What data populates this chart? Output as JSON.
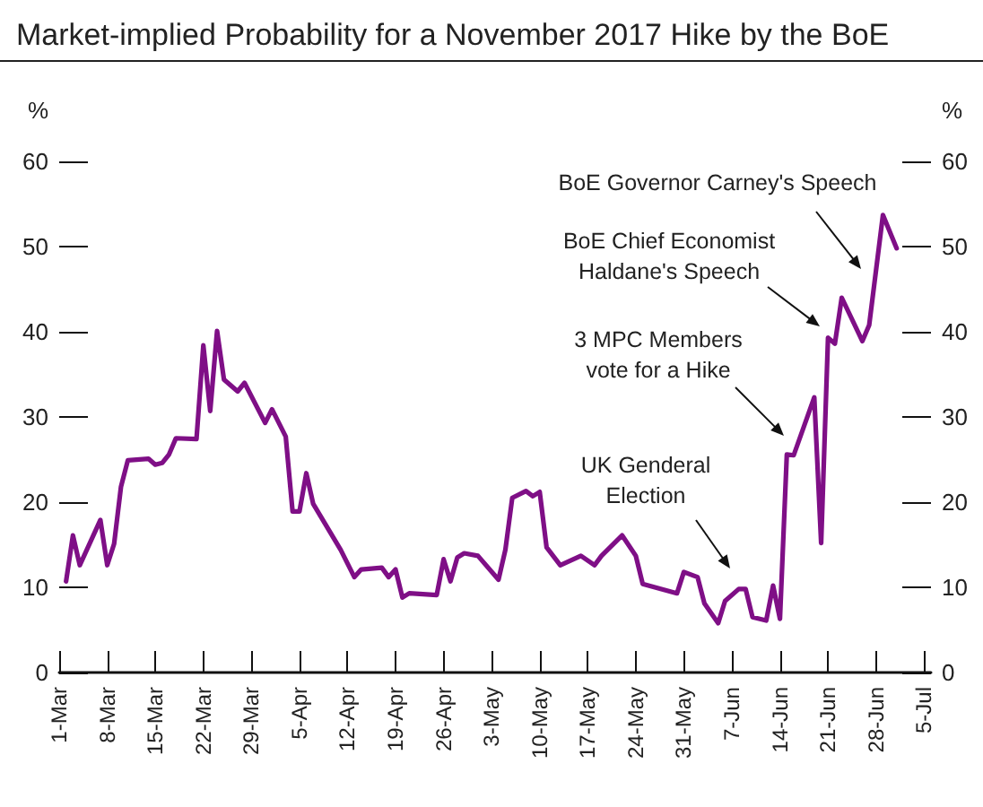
{
  "chart_data": {
    "type": "line",
    "title": "Market-implied Probability for a November 2017 Hike by the BoE",
    "ylabel": "%",
    "y2label": "%",
    "x": [
      "--03-02",
      "--03-03",
      "--03-04",
      "--03-07",
      "--03-08",
      "--03-09",
      "--03-10",
      "--03-11",
      "--03-14",
      "--03-15",
      "--03-16",
      "--03-17",
      "--03-18",
      "--03-21",
      "--03-22",
      "--03-23",
      "--03-24",
      "--03-25",
      "--03-27",
      "--03-28",
      "--03-31",
      "--04-01",
      "--04-03",
      "--04-04",
      "--04-05",
      "--04-06",
      "--04-07",
      "--04-11",
      "--04-13",
      "--04-14",
      "--04-17",
      "--04-18",
      "--04-19",
      "--04-20",
      "--04-21",
      "--04-25",
      "--04-26",
      "--04-27",
      "--04-28",
      "--04-29",
      "--05-01",
      "--05-04",
      "--05-05",
      "--05-06",
      "--05-08",
      "--05-09",
      "--05-10",
      "--05-11",
      "--05-13",
      "--05-16",
      "--05-18",
      "--05-19",
      "--05-22",
      "--05-24",
      "--05-25",
      "--05-30",
      "--05-31",
      "--06-02",
      "--06-03",
      "--06-05",
      "--06-06",
      "--06-08",
      "--06-09",
      "--06-10",
      "--06-12",
      "--06-13",
      "--06-14",
      "--06-15",
      "--06-16",
      "--06-19",
      "--06-20",
      "--06-21",
      "--06-22",
      "--06-23",
      "--06-26",
      "--06-27",
      "--06-29",
      "--07-01"
    ],
    "series": [
      {
        "color": "#7f0f86",
        "values": [
          10.7,
          16.1,
          12.6,
          17.9,
          12.6,
          15.1,
          21.8,
          24.9,
          25.1,
          24.4,
          24.6,
          25.6,
          27.5,
          27.4,
          38.4,
          30.7,
          40.1,
          34.4,
          33.0,
          34.0,
          29.3,
          30.9,
          27.7,
          18.9,
          18.9,
          23.4,
          19.8,
          14.4,
          11.2,
          12.1,
          12.3,
          11.2,
          12.1,
          8.8,
          9.3,
          9.1,
          13.3,
          10.7,
          13.5,
          14.0,
          13.7,
          10.9,
          14.4,
          20.5,
          21.3,
          20.7,
          21.2,
          14.7,
          12.6,
          13.7,
          12.6,
          13.7,
          16.1,
          13.7,
          10.4,
          9.3,
          11.8,
          11.2,
          8.1,
          5.8,
          8.4,
          9.8,
          9.8,
          6.5,
          6.1,
          10.2,
          6.3,
          25.6,
          25.5,
          32.3,
          15.2,
          39.3,
          38.6,
          44.0,
          38.9,
          40.8,
          53.7,
          49.8
        ]
      }
    ],
    "xlim": [
      "--03-01",
      "--07-06"
    ],
    "xticks": [
      {
        "value": "--03-01",
        "label": "1-Mar"
      },
      {
        "value": "--03-08",
        "label": "8-Mar"
      },
      {
        "value": "--03-15",
        "label": "15-Mar"
      },
      {
        "value": "--03-22",
        "label": "22-Mar"
      },
      {
        "value": "--03-29",
        "label": "29-Mar"
      },
      {
        "value": "--04-05",
        "label": "5-Apr"
      },
      {
        "value": "--04-12",
        "label": "12-Apr"
      },
      {
        "value": "--04-19",
        "label": "19-Apr"
      },
      {
        "value": "--04-26",
        "label": "26-Apr"
      },
      {
        "value": "--05-03",
        "label": "3-May"
      },
      {
        "value": "--05-10",
        "label": "10-May"
      },
      {
        "value": "--05-17",
        "label": "17-May"
      },
      {
        "value": "--05-24",
        "label": "24-May"
      },
      {
        "value": "--05-31",
        "label": "31-May"
      },
      {
        "value": "--06-07",
        "label": "7-Jun"
      },
      {
        "value": "--06-14",
        "label": "14-Jun"
      },
      {
        "value": "--06-21",
        "label": "21-Jun"
      },
      {
        "value": "--06-28",
        "label": "28-Jun"
      },
      {
        "value": "--07-05",
        "label": "5-Jul"
      }
    ],
    "ylim": [
      0,
      60
    ],
    "yticks": [
      0,
      10,
      20,
      30,
      40,
      50,
      60
    ],
    "y2lim": [
      0,
      60
    ],
    "y2ticks": [
      0,
      10,
      20,
      30,
      40,
      50,
      60
    ],
    "grid": false,
    "marker": "none",
    "line_style": "solid",
    "annotations": [
      "UK Genderal\nElection",
      "3 MPC Members\nvote for a Hike",
      "BoE Chief Economist\nHaldane's Speech",
      "BoE Governor Carney's Speech"
    ]
  }
}
